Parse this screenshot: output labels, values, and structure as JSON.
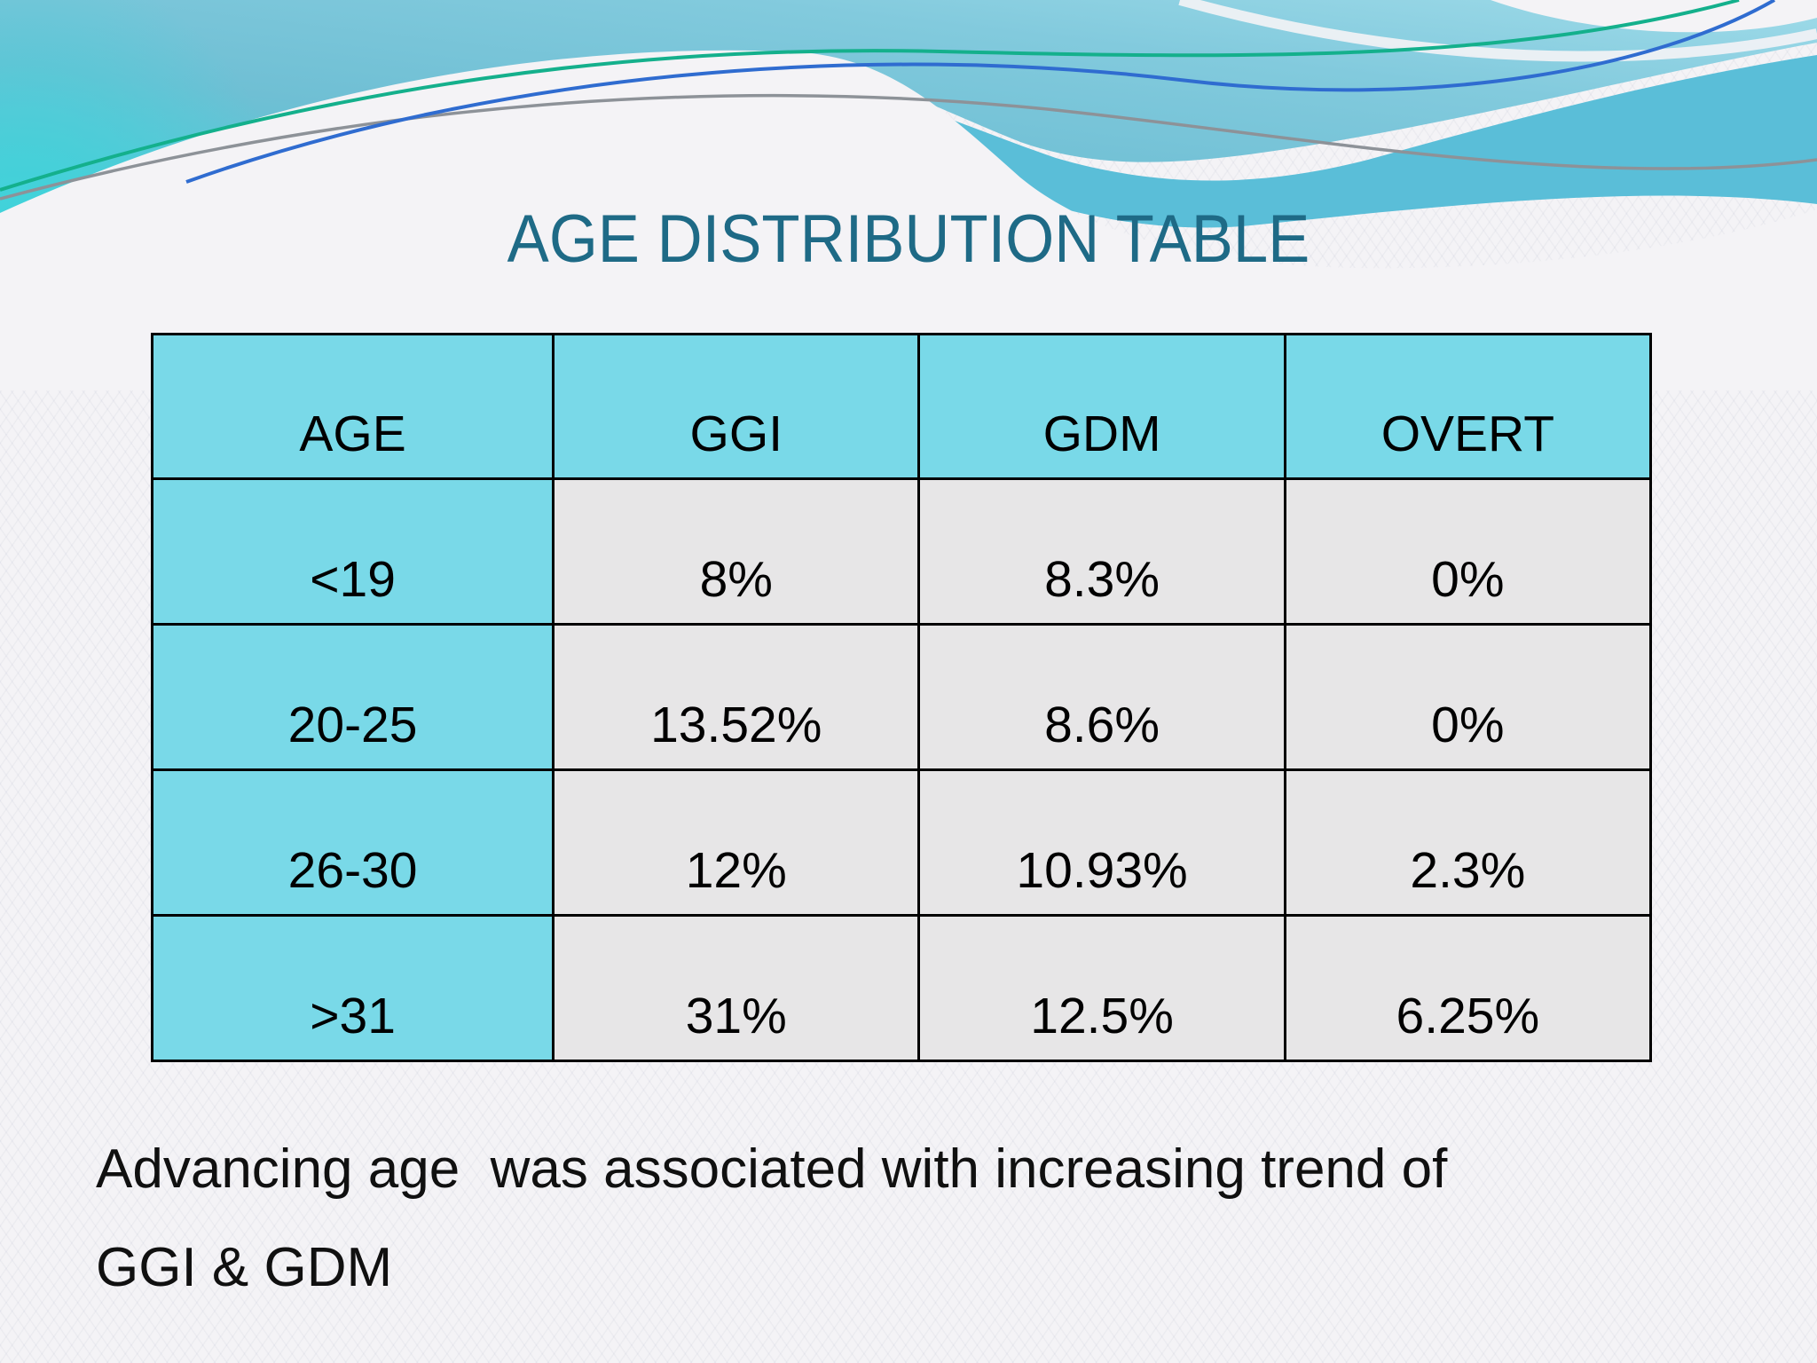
{
  "slide": {
    "title": "AGE DISTRIBUTION TABLE",
    "conclusion": "Advancing age  was associated with increasing trend of\nGGI & GDM"
  },
  "table": {
    "columns": [
      "AGE",
      "GGI",
      "GDM",
      "OVERT"
    ],
    "rows": [
      [
        "<19",
        "8%",
        "8.3%",
        "0%"
      ],
      [
        "20-25",
        "13.52%",
        "8.6%",
        "0%"
      ],
      [
        "26-30",
        "12%",
        "10.93%",
        "2.3%"
      ],
      [
        ">31",
        "31%",
        "12.5%",
        "6.25%"
      ]
    ]
  },
  "colors": {
    "accent_cyan": "#79d9e8",
    "cell_gray": "#e7e6e7",
    "title_teal": "#1e6a86",
    "border_black": "#000000",
    "wave_band_cyan": "#5abed8",
    "accent_line_green": "#14b08c",
    "accent_line_blue": "#2f6cd0",
    "accent_line_gray": "#8d9298"
  }
}
